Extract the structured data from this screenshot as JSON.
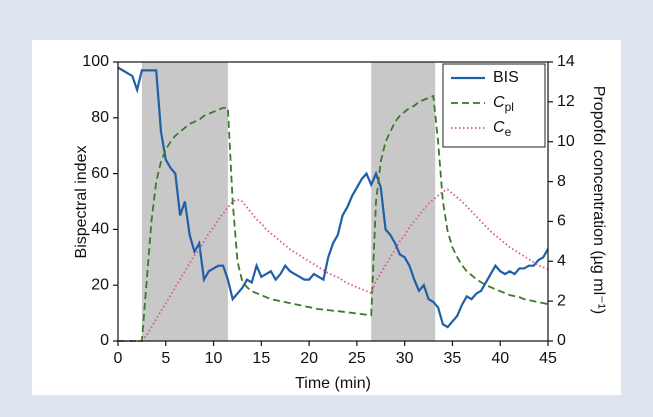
{
  "chart_data": {
    "type": "line",
    "xlabel": "Time (min)",
    "ylabel": "Bispectral index",
    "y2label": "Propofol concentration (µg ml⁻¹)",
    "xlim": [
      0,
      45
    ],
    "xticks": [
      0,
      5,
      10,
      15,
      20,
      25,
      30,
      35,
      40,
      45
    ],
    "ylim": [
      0,
      100
    ],
    "yticks": [
      0,
      20,
      40,
      60,
      80,
      100
    ],
    "y2lim": [
      0,
      14
    ],
    "y2ticks": [
      0,
      2,
      4,
      6,
      8,
      10,
      12,
      14
    ],
    "grid": false,
    "legend": "upper right",
    "shaded_regions": [
      [
        2.5,
        11.5
      ],
      [
        26.5,
        33.2
      ]
    ],
    "shade_color": "#c8c8c8",
    "x": [
      0,
      0.5,
      1,
      1.5,
      2,
      2.5,
      3,
      3.5,
      4,
      4.5,
      5,
      5.5,
      6,
      6.5,
      7,
      7.5,
      8,
      8.5,
      9,
      9.5,
      10,
      10.5,
      11,
      11.5,
      12,
      12.5,
      13,
      13.5,
      14,
      14.5,
      15,
      15.5,
      16,
      16.5,
      17,
      17.5,
      18,
      18.5,
      19,
      19.5,
      20,
      20.5,
      21,
      21.5,
      22,
      22.5,
      23,
      23.5,
      24,
      24.5,
      25,
      25.5,
      26,
      26.5,
      27,
      27.5,
      28,
      28.5,
      29,
      29.5,
      30,
      30.5,
      31,
      31.5,
      32,
      32.5,
      33,
      33.5,
      34,
      34.5,
      35,
      35.5,
      36,
      36.5,
      37,
      37.5,
      38,
      38.5,
      39,
      39.5,
      40,
      40.5,
      41,
      41.5,
      42,
      42.5,
      43,
      43.5,
      44,
      44.5,
      45
    ],
    "series": [
      {
        "name": "BIS",
        "color": "#1f5fa8",
        "style": "solid",
        "values": [
          98,
          97,
          96,
          95,
          90,
          97,
          97,
          97,
          97,
          75,
          65,
          62,
          60,
          45,
          50,
          38,
          32,
          35,
          22,
          25,
          26,
          27,
          27,
          22,
          15,
          17,
          19,
          22,
          21,
          27,
          23,
          24,
          25,
          22,
          24,
          27,
          25,
          24,
          23,
          22,
          22,
          24,
          23,
          22,
          30,
          35,
          38,
          45,
          48,
          52,
          55,
          58,
          60,
          56,
          60,
          55,
          40,
          38,
          35,
          31,
          30,
          27,
          22,
          18,
          20,
          15,
          14,
          12,
          6,
          5,
          7,
          9,
          13,
          16,
          15,
          17,
          18,
          21,
          24,
          27,
          25,
          24,
          25,
          24,
          26,
          26,
          27,
          27,
          29,
          30,
          33
        ]
      },
      {
        "name": "C",
        "subscript": "pl",
        "color": "#3a7a2a",
        "style": "dashed",
        "axis": "y2",
        "values": [
          0,
          0,
          0,
          0,
          0,
          0,
          3,
          6,
          8,
          9,
          9.6,
          10,
          10.3,
          10.5,
          10.7,
          10.9,
          11,
          11.1,
          11.3,
          11.4,
          11.5,
          11.6,
          11.7,
          11.7,
          7,
          4,
          3,
          2.7,
          2.5,
          2.4,
          2.3,
          2.2,
          2.1,
          2.05,
          2,
          1.95,
          1.9,
          1.85,
          1.8,
          1.75,
          1.7,
          1.65,
          1.6,
          1.58,
          1.55,
          1.52,
          1.5,
          1.47,
          1.44,
          1.41,
          1.38,
          1.35,
          1.32,
          1.3,
          7,
          9,
          10,
          10.5,
          11,
          11.3,
          11.5,
          11.7,
          11.8,
          12,
          12.1,
          12.2,
          12.3,
          10,
          7,
          5.5,
          4.7,
          4.2,
          3.8,
          3.5,
          3.3,
          3.1,
          2.95,
          2.8,
          2.7,
          2.6,
          2.5,
          2.4,
          2.3,
          2.25,
          2.2,
          2.1,
          2.05,
          2,
          1.95,
          1.9,
          1.85
        ]
      },
      {
        "name": "C",
        "subscript": "e",
        "color": "#d9559a",
        "style": "dotted",
        "axis": "y2",
        "values": [
          0,
          0,
          0,
          0,
          0,
          0,
          0.3,
          0.7,
          1.1,
          1.5,
          1.9,
          2.3,
          2.7,
          3.1,
          3.5,
          3.9,
          4.3,
          4.6,
          5,
          5.4,
          5.7,
          6.1,
          6.4,
          6.7,
          7,
          7.1,
          7,
          6.7,
          6.4,
          6.1,
          5.9,
          5.6,
          5.4,
          5.2,
          5,
          4.8,
          4.6,
          4.45,
          4.3,
          4.15,
          4,
          3.85,
          3.7,
          3.55,
          3.4,
          3.3,
          3.2,
          3.05,
          2.9,
          2.8,
          2.7,
          2.6,
          2.5,
          2.4,
          3,
          3.4,
          3.8,
          4.2,
          4.6,
          5,
          5.3,
          5.7,
          6,
          6.3,
          6.6,
          6.9,
          7.1,
          7.3,
          7.5,
          7.6,
          7.4,
          7.2,
          7,
          6.75,
          6.5,
          6.25,
          6,
          5.75,
          5.5,
          5.3,
          5.1,
          4.9,
          4.7,
          4.55,
          4.4,
          4.25,
          4.1,
          3.95,
          3.8,
          3.7,
          3.6
        ]
      }
    ]
  }
}
